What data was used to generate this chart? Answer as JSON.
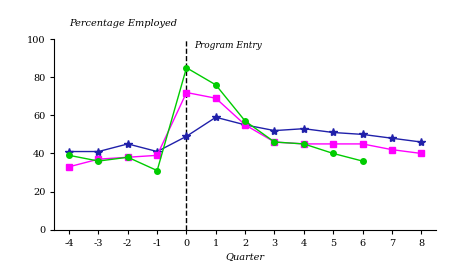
{
  "quarters": [
    -4,
    -3,
    -2,
    -1,
    0,
    1,
    2,
    3,
    4,
    5,
    6,
    7,
    8
  ],
  "rsc": [
    41,
    41,
    45,
    41,
    49,
    59,
    55,
    52,
    53,
    51,
    50,
    48,
    46
  ],
  "twc_early": [
    33,
    37,
    38,
    39,
    72,
    69,
    55,
    46,
    45,
    45,
    45,
    42,
    40
  ],
  "twc_late": [
    39,
    36,
    38,
    31,
    85,
    76,
    57,
    46,
    45,
    40,
    36,
    null,
    null
  ],
  "rsc_color": "#2020aa",
  "twc_early_color": "#ff00ff",
  "twc_late_color": "#00cc00",
  "ylabel": "Percentage Employed",
  "xlabel": "Quarter",
  "program_entry_label": "Program Entry",
  "ylim": [
    0,
    100
  ],
  "yticks": [
    0,
    20,
    40,
    60,
    80,
    100
  ],
  "background_color": "#ffffff"
}
